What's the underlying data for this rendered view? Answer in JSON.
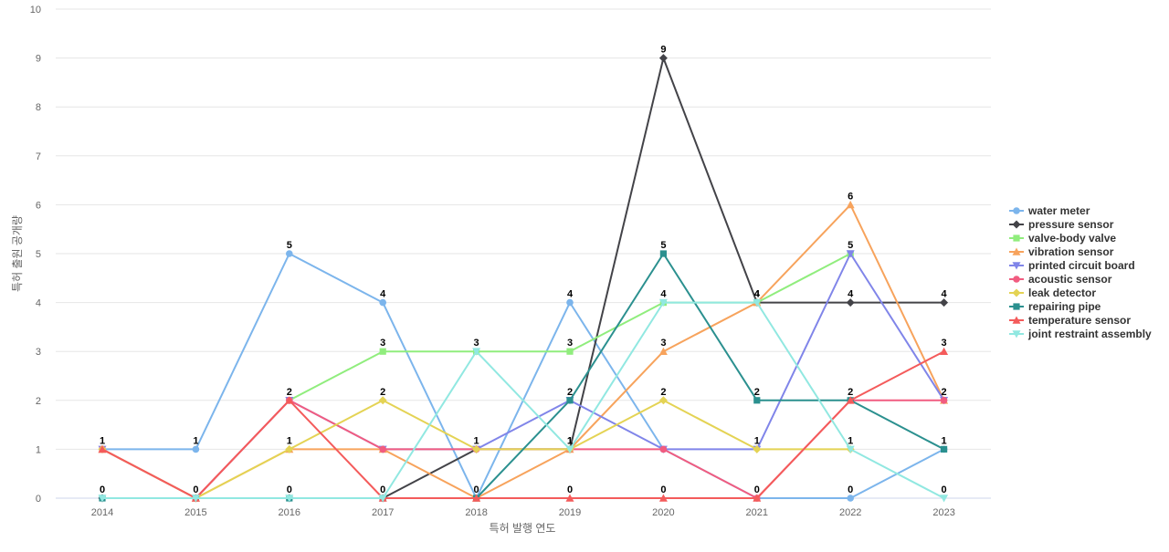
{
  "chart_data": {
    "type": "line",
    "title": "",
    "xlabel": "특허 발행 연도",
    "ylabel": "특허 출원 공개량",
    "ylim": [
      0,
      10
    ],
    "yticks": [
      0,
      1,
      2,
      3,
      4,
      5,
      6,
      7,
      8,
      9,
      10
    ],
    "grid": true,
    "legend_position": "right",
    "categories": [
      "2014",
      "2015",
      "2016",
      "2017",
      "2018",
      "2019",
      "2020",
      "2021",
      "2022",
      "2023"
    ],
    "series": [
      {
        "name": "water meter",
        "color": "#7cb5ec",
        "marker": "circle",
        "values": [
          1,
          1,
          5,
          4,
          0,
          4,
          1,
          0,
          0,
          1
        ],
        "labels": [
          1,
          1,
          5,
          4,
          null,
          4,
          null,
          null,
          0,
          null
        ]
      },
      {
        "name": "pressure sensor",
        "color": "#434348",
        "marker": "diamond",
        "values": [
          0,
          0,
          0,
          0,
          1,
          1,
          9,
          4,
          4,
          4
        ],
        "labels": [
          null,
          null,
          null,
          null,
          null,
          null,
          9,
          4,
          4,
          4
        ]
      },
      {
        "name": "valve-body valve",
        "color": "#90ed7d",
        "marker": "square",
        "values": [
          null,
          null,
          2,
          3,
          3,
          3,
          4,
          4,
          5,
          null
        ],
        "labels": [
          null,
          null,
          null,
          3,
          3,
          3,
          4,
          null,
          null,
          null
        ]
      },
      {
        "name": "vibration sensor",
        "color": "#f7a35c",
        "marker": "triangle",
        "values": [
          1,
          0,
          1,
          1,
          0,
          1,
          3,
          4,
          6,
          2
        ],
        "labels": [
          null,
          null,
          null,
          null,
          null,
          null,
          3,
          null,
          6,
          null
        ]
      },
      {
        "name": "printed circuit board",
        "color": "#8085e9",
        "marker": "triangle-down",
        "values": [
          1,
          0,
          2,
          1,
          1,
          2,
          1,
          1,
          5,
          2
        ],
        "labels": [
          null,
          null,
          null,
          null,
          null,
          null,
          null,
          1,
          5,
          null
        ]
      },
      {
        "name": "acoustic sensor",
        "color": "#f15c80",
        "marker": "circle",
        "values": [
          1,
          0,
          2,
          1,
          1,
          1,
          1,
          0,
          2,
          2
        ],
        "labels": [
          null,
          null,
          null,
          null,
          null,
          1,
          null,
          null,
          null,
          2
        ]
      },
      {
        "name": "leak detector",
        "color": "#e4d354",
        "marker": "diamond",
        "values": [
          1,
          0,
          1,
          2,
          1,
          1,
          2,
          1,
          1,
          null
        ],
        "labels": [
          null,
          null,
          1,
          2,
          1,
          null,
          2,
          null,
          1,
          null
        ]
      },
      {
        "name": "repairing pipe",
        "color": "#2b908f",
        "marker": "square",
        "values": [
          0,
          0,
          0,
          0,
          0,
          2,
          5,
          2,
          2,
          1
        ],
        "labels": [
          0,
          0,
          0,
          0,
          0,
          2,
          5,
          2,
          2,
          1
        ]
      },
      {
        "name": "temperature sensor",
        "color": "#f45b5b",
        "marker": "triangle",
        "values": [
          1,
          0,
          2,
          0,
          0,
          0,
          0,
          0,
          2,
          3
        ],
        "labels": [
          null,
          null,
          2,
          null,
          null,
          0,
          0,
          0,
          null,
          3
        ]
      },
      {
        "name": "joint restraint assembly",
        "color": "#91e8e1",
        "marker": "triangle-down",
        "values": [
          0,
          0,
          0,
          0,
          3,
          1,
          4,
          4,
          1,
          0
        ],
        "labels": [
          null,
          null,
          null,
          null,
          null,
          1,
          null,
          4,
          null,
          0
        ]
      }
    ]
  }
}
